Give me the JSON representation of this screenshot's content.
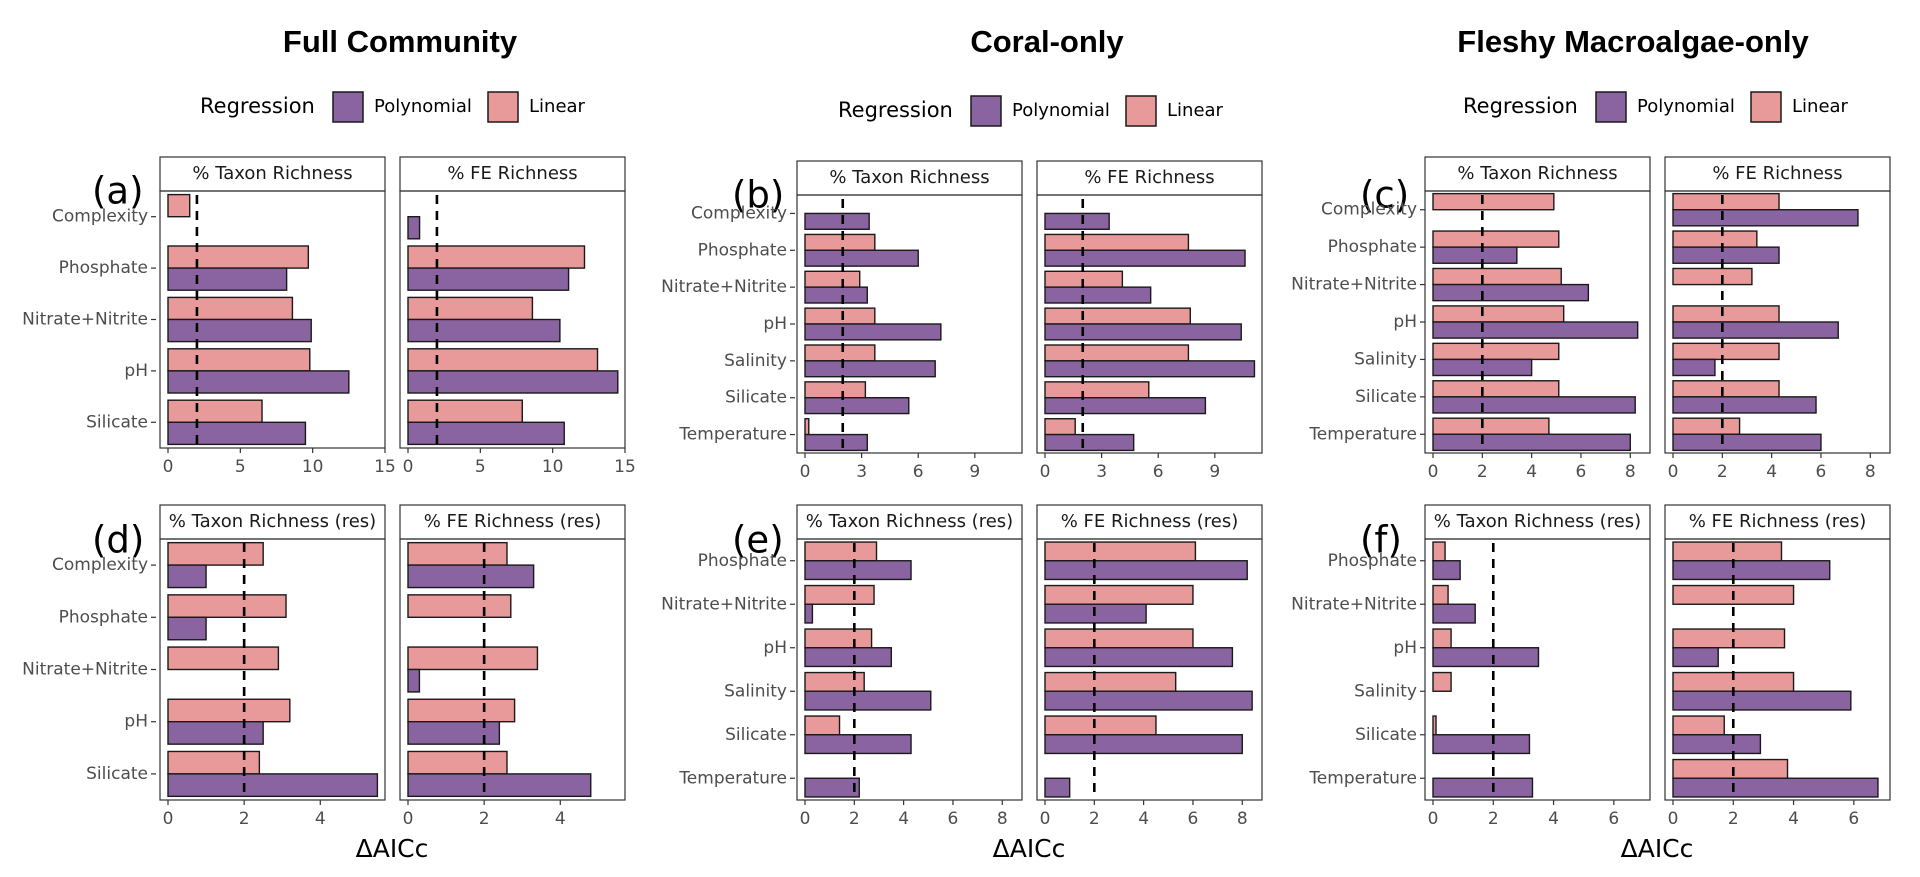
{
  "figure": {
    "column_titles": [
      "Full Community",
      "Coral-only",
      "Fleshy Macroalgae-only"
    ],
    "legend": {
      "title": "Regression",
      "labels": [
        "Polynomial",
        "Linear"
      ]
    },
    "xlabel": "ΔAICc",
    "colors": {
      "polynomial": "#8a64a0",
      "linear": "#e89999",
      "threshold_line": "#000000"
    }
  },
  "chart_data": [
    {
      "type": "bar",
      "panel": "(a)",
      "column": "Full Community",
      "row": "top",
      "threshold": 2,
      "categories": [
        "Complexity",
        "Phosphate",
        "Nitrate+Nitrite",
        "pH",
        "Silicate"
      ],
      "facets": [
        {
          "title": "% Taxon Richness",
          "xlim": [
            0,
            15
          ],
          "ticks": [
            0,
            5,
            10,
            15
          ],
          "series": [
            {
              "name": "Linear",
              "values": [
                1.5,
                9.7,
                8.6,
                9.8,
                6.5
              ]
            },
            {
              "name": "Polynomial",
              "values": [
                0,
                8.2,
                9.9,
                12.5,
                9.5
              ]
            }
          ]
        },
        {
          "title": "% FE Richness",
          "xlim": [
            0,
            15
          ],
          "ticks": [
            0,
            5,
            10,
            15
          ],
          "series": [
            {
              "name": "Linear",
              "values": [
                0,
                12.2,
                8.6,
                13.1,
                7.9
              ]
            },
            {
              "name": "Polynomial",
              "values": [
                0.8,
                11.1,
                10.5,
                14.5,
                10.8
              ]
            }
          ]
        }
      ]
    },
    {
      "type": "bar",
      "panel": "(b)",
      "column": "Coral-only",
      "row": "top",
      "threshold": 2,
      "categories": [
        "Complexity",
        "Phosphate",
        "Nitrate+Nitrite",
        "pH",
        "Salinity",
        "Silicate",
        "Temperature"
      ],
      "facets": [
        {
          "title": "% Taxon Richness",
          "xlim": [
            0,
            11.5
          ],
          "ticks": [
            0,
            3,
            6,
            9
          ],
          "series": [
            {
              "name": "Linear",
              "values": [
                0,
                3.7,
                2.9,
                3.7,
                3.7,
                3.2,
                0.2
              ]
            },
            {
              "name": "Polynomial",
              "values": [
                3.4,
                6.0,
                3.3,
                7.2,
                6.9,
                5.5,
                3.3
              ]
            }
          ]
        },
        {
          "title": "% FE Richness",
          "xlim": [
            0,
            11.5
          ],
          "ticks": [
            0,
            3,
            6,
            9
          ],
          "series": [
            {
              "name": "Linear",
              "values": [
                0,
                7.6,
                4.1,
                7.7,
                7.6,
                5.5,
                1.6
              ]
            },
            {
              "name": "Polynomial",
              "values": [
                3.4,
                10.6,
                5.6,
                10.4,
                11.1,
                8.5,
                4.7
              ]
            }
          ]
        }
      ]
    },
    {
      "type": "bar",
      "panel": "(c)",
      "column": "Fleshy Macroalgae-only",
      "row": "top",
      "threshold": 2,
      "categories": [
        "Complexity",
        "Phosphate",
        "Nitrate+Nitrite",
        "pH",
        "Salinity",
        "Silicate",
        "Temperature"
      ],
      "facets": [
        {
          "title": "% Taxon Richness",
          "xlim": [
            0,
            8.8
          ],
          "ticks": [
            0,
            2,
            4,
            6,
            8
          ],
          "series": [
            {
              "name": "Linear",
              "values": [
                4.9,
                5.1,
                5.2,
                5.3,
                5.1,
                5.1,
                4.7
              ]
            },
            {
              "name": "Polynomial",
              "values": [
                0,
                3.4,
                6.3,
                8.3,
                4.0,
                8.2,
                8.0
              ]
            }
          ]
        },
        {
          "title": "% FE Richness",
          "xlim": [
            0,
            8.8
          ],
          "ticks": [
            0,
            2,
            4,
            6,
            8
          ],
          "series": [
            {
              "name": "Linear",
              "values": [
                4.3,
                3.4,
                3.2,
                4.3,
                4.3,
                4.3,
                2.7
              ]
            },
            {
              "name": "Polynomial",
              "values": [
                7.5,
                4.3,
                0,
                6.7,
                1.7,
                5.8,
                6.0
              ]
            }
          ]
        }
      ]
    },
    {
      "type": "bar",
      "panel": "(d)",
      "column": "Full Community",
      "row": "bottom",
      "threshold": 2,
      "categories": [
        "Complexity",
        "Phosphate",
        "Nitrate+Nitrite",
        "pH",
        "Silicate"
      ],
      "facets": [
        {
          "title": "% Taxon Richness (res)",
          "xlim": [
            0,
            5.7
          ],
          "ticks": [
            0,
            2,
            4
          ],
          "series": [
            {
              "name": "Linear",
              "values": [
                2.5,
                3.1,
                2.9,
                3.2,
                2.4
              ]
            },
            {
              "name": "Polynomial",
              "values": [
                1.0,
                1.0,
                0,
                2.5,
                5.5
              ]
            }
          ]
        },
        {
          "title": "% FE Richness (res)",
          "xlim": [
            0,
            5.7
          ],
          "ticks": [
            0,
            2,
            4
          ],
          "series": [
            {
              "name": "Linear",
              "values": [
                2.6,
                2.7,
                3.4,
                2.8,
                2.6
              ]
            },
            {
              "name": "Polynomial",
              "values": [
                3.3,
                0,
                0.3,
                2.4,
                4.8
              ]
            }
          ]
        }
      ]
    },
    {
      "type": "bar",
      "panel": "(e)",
      "column": "Coral-only",
      "row": "bottom",
      "threshold": 2,
      "categories": [
        "Phosphate",
        "Nitrate+Nitrite",
        "pH",
        "Salinity",
        "Silicate",
        "Temperature"
      ],
      "facets": [
        {
          "title": "% Taxon Richness (res)",
          "xlim": [
            0,
            8.8
          ],
          "ticks": [
            0,
            2,
            4,
            6,
            8
          ],
          "series": [
            {
              "name": "Linear",
              "values": [
                2.9,
                2.8,
                2.7,
                2.4,
                1.4,
                0
              ]
            },
            {
              "name": "Polynomial",
              "values": [
                4.3,
                0.3,
                3.5,
                5.1,
                4.3,
                2.2
              ]
            }
          ]
        },
        {
          "title": "% FE Richness (res)",
          "xlim": [
            0,
            8.8
          ],
          "ticks": [
            0,
            2,
            4,
            6,
            8
          ],
          "series": [
            {
              "name": "Linear",
              "values": [
                6.1,
                6.0,
                6.0,
                5.3,
                4.5,
                0
              ]
            },
            {
              "name": "Polynomial",
              "values": [
                8.2,
                4.1,
                7.6,
                8.4,
                8.0,
                1.0
              ]
            }
          ]
        }
      ]
    },
    {
      "type": "bar",
      "panel": "(f)",
      "column": "Fleshy Macroalgae-only",
      "row": "bottom",
      "threshold": 2,
      "categories": [
        "Phosphate",
        "Nitrate+Nitrite",
        "pH",
        "Salinity",
        "Silicate",
        "Temperature"
      ],
      "facets": [
        {
          "title": "% Taxon Richness (res)",
          "xlim": [
            0,
            7.2
          ],
          "ticks": [
            0,
            2,
            4,
            6
          ],
          "series": [
            {
              "name": "Linear",
              "values": [
                0.4,
                0.5,
                0.6,
                0.6,
                0.1,
                0
              ]
            },
            {
              "name": "Polynomial",
              "values": [
                0.9,
                1.4,
                3.5,
                0,
                3.2,
                3.3
              ]
            }
          ]
        },
        {
          "title": "% FE Richness (res)",
          "xlim": [
            0,
            7.2
          ],
          "ticks": [
            0,
            2,
            4,
            6
          ],
          "series": [
            {
              "name": "Linear",
              "values": [
                3.6,
                4.0,
                3.7,
                4.0,
                1.7,
                3.8
              ]
            },
            {
              "name": "Polynomial",
              "values": [
                5.2,
                0,
                1.5,
                5.9,
                2.9,
                6.8
              ]
            }
          ]
        }
      ]
    }
  ]
}
